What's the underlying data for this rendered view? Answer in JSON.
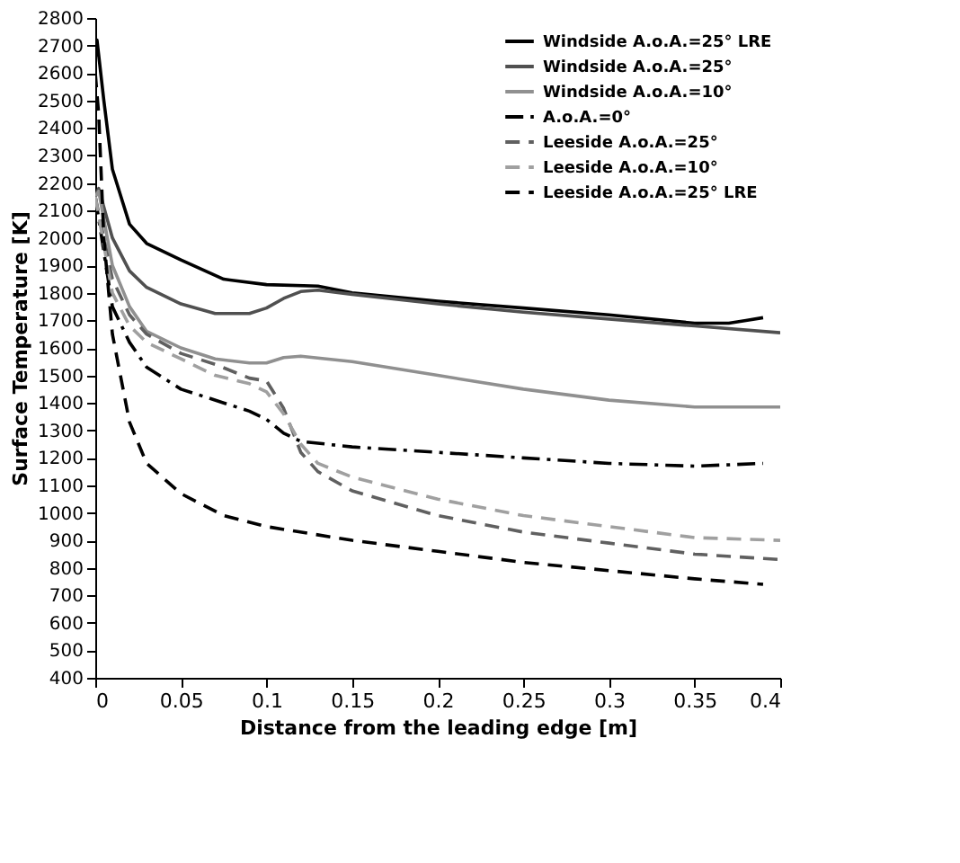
{
  "chart_data": {
    "type": "line",
    "xlabel": "Distance from the leading edge [m]",
    "ylabel": "Surface Temperature [K]",
    "xlim": [
      0,
      0.4
    ],
    "xticks": [
      0,
      0.05,
      0.1,
      0.15,
      0.2,
      0.25,
      0.3,
      0.35,
      0.4
    ],
    "ylim": [
      400,
      2800
    ],
    "yticks": [
      400,
      500,
      600,
      700,
      800,
      900,
      1000,
      1100,
      1200,
      1300,
      1400,
      1500,
      1600,
      1700,
      1800,
      1900,
      2000,
      2100,
      2200,
      2300,
      2400,
      2500,
      2600,
      2700,
      2800
    ],
    "grid": false,
    "legend": "top right",
    "marker": "none",
    "series": [
      {
        "name": "Windside A.o.A.=25° LRE",
        "color": "#000000",
        "line_style": "solid",
        "x": [
          0,
          0.001,
          0.005,
          0.01,
          0.02,
          0.03,
          0.05,
          0.075,
          0.1,
          0.13,
          0.15,
          0.2,
          0.25,
          0.3,
          0.35,
          0.37,
          0.38,
          0.39
        ],
        "values": [
          2650,
          2720,
          2500,
          2250,
          2050,
          1980,
          1920,
          1850,
          1830,
          1825,
          1800,
          1770,
          1745,
          1720,
          1690,
          1690,
          1700,
          1710
        ]
      },
      {
        "name": "Windside A.o.A.=25°",
        "color": "#505050",
        "line_style": "solid",
        "x": [
          0,
          0.002,
          0.01,
          0.02,
          0.03,
          0.05,
          0.07,
          0.09,
          0.1,
          0.11,
          0.12,
          0.13,
          0.15,
          0.2,
          0.25,
          0.3,
          0.35,
          0.4
        ],
        "values": [
          2150,
          2180,
          2000,
          1880,
          1820,
          1760,
          1725,
          1725,
          1745,
          1780,
          1805,
          1810,
          1795,
          1760,
          1730,
          1705,
          1680,
          1655
        ]
      },
      {
        "name": "Windside A.o.A.=10°",
        "color": "#909090",
        "line_style": "solid",
        "x": [
          0,
          0.002,
          0.01,
          0.02,
          0.03,
          0.05,
          0.07,
          0.09,
          0.1,
          0.11,
          0.12,
          0.15,
          0.2,
          0.25,
          0.3,
          0.35,
          0.4
        ],
        "values": [
          2150,
          2170,
          1900,
          1750,
          1660,
          1600,
          1560,
          1545,
          1545,
          1565,
          1570,
          1550,
          1500,
          1450,
          1410,
          1385,
          1385
        ]
      },
      {
        "name": "A.o.A.=0°",
        "color": "#000000",
        "line_style": "dotted",
        "x": [
          0,
          0.01,
          0.02,
          0.03,
          0.05,
          0.075,
          0.09,
          0.1,
          0.11,
          0.12,
          0.15,
          0.2,
          0.25,
          0.3,
          0.35,
          0.39
        ],
        "values": [
          2150,
          1750,
          1620,
          1530,
          1450,
          1400,
          1370,
          1340,
          1290,
          1260,
          1240,
          1220,
          1200,
          1180,
          1170,
          1180
        ]
      },
      {
        "name": "Leeside  A.o.A.=25°",
        "color": "#606060",
        "line_style": "dashed",
        "x": [
          0,
          0.01,
          0.02,
          0.03,
          0.05,
          0.07,
          0.09,
          0.1,
          0.11,
          0.12,
          0.13,
          0.15,
          0.2,
          0.25,
          0.3,
          0.35,
          0.4
        ],
        "values": [
          2150,
          1850,
          1720,
          1650,
          1580,
          1540,
          1490,
          1480,
          1380,
          1220,
          1150,
          1080,
          990,
          930,
          890,
          850,
          830
        ]
      },
      {
        "name": "Leeside A.o.A.=10°",
        "color": "#a0a0a0",
        "line_style": "dashed",
        "x": [
          0,
          0.01,
          0.02,
          0.03,
          0.05,
          0.07,
          0.09,
          0.1,
          0.11,
          0.12,
          0.13,
          0.15,
          0.2,
          0.25,
          0.3,
          0.35,
          0.4
        ],
        "values": [
          2150,
          1800,
          1680,
          1620,
          1560,
          1500,
          1470,
          1440,
          1360,
          1250,
          1180,
          1130,
          1050,
          990,
          950,
          910,
          900
        ]
      },
      {
        "name": "Leeside A.o.A.=25° LRE",
        "color": "#000000",
        "line_style": "dashed",
        "x": [
          0,
          0.002,
          0.005,
          0.01,
          0.02,
          0.03,
          0.05,
          0.075,
          0.1,
          0.15,
          0.2,
          0.25,
          0.3,
          0.35,
          0.39
        ],
        "values": [
          2600,
          2450,
          2000,
          1650,
          1330,
          1180,
          1070,
          990,
          950,
          900,
          860,
          820,
          790,
          760,
          740
        ]
      }
    ]
  }
}
